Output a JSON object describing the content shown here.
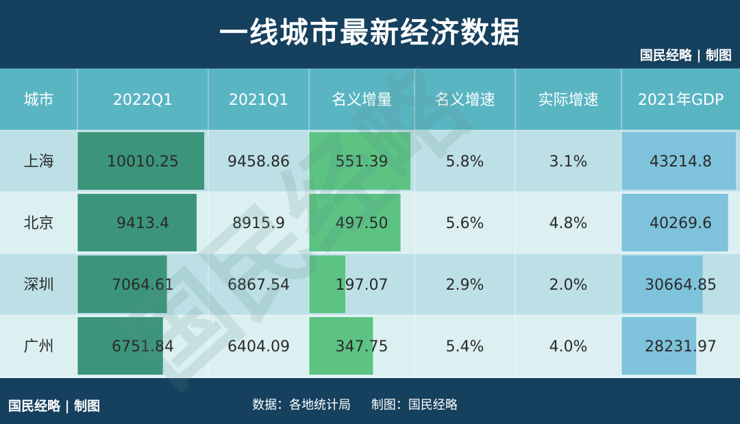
{
  "title": "一线城市最新经济数据",
  "brand": "国民经略 | 制图",
  "footer": {
    "data_source": "数据：各地统计局",
    "made_by": "制图：国民经略"
  },
  "watermark": "国民经略",
  "colors": {
    "background": "#15405e",
    "header": "#5ab5c3",
    "row_odd": "#bde0e6",
    "row_even": "#dcf0f2",
    "bar_q1": "#3c957a",
    "bar_increase": "#5cc383",
    "bar_gdp": "#7ec3db"
  },
  "chart_data": {
    "type": "table",
    "columns": [
      "城市",
      "2022Q1",
      "2021Q1",
      "名义增量",
      "名义增速",
      "实际增速",
      "2021年GDP"
    ],
    "rows": [
      [
        "上海",
        "10010.25",
        "9458.86",
        "551.39",
        "5.8%",
        "3.1%",
        "43214.8"
      ],
      [
        "北京",
        "9413.4",
        "8915.9",
        "497.50",
        "5.6%",
        "4.8%",
        "40269.6"
      ],
      [
        "深圳",
        "7064.61",
        "6867.54",
        "197.07",
        "2.9%",
        "2.0%",
        "30664.85"
      ],
      [
        "广州",
        "6751.84",
        "6404.09",
        "347.75",
        "5.4%",
        "4.0%",
        "28231.97"
      ]
    ],
    "bars": {
      "2022Q1": [
        10010.25,
        9413.4,
        7064.61,
        6751.84
      ],
      "名义增量": [
        551.39,
        497.5,
        197.07,
        347.75
      ],
      "2021年GDP": [
        43214.8,
        40269.6,
        30664.85,
        28231.97
      ]
    }
  }
}
